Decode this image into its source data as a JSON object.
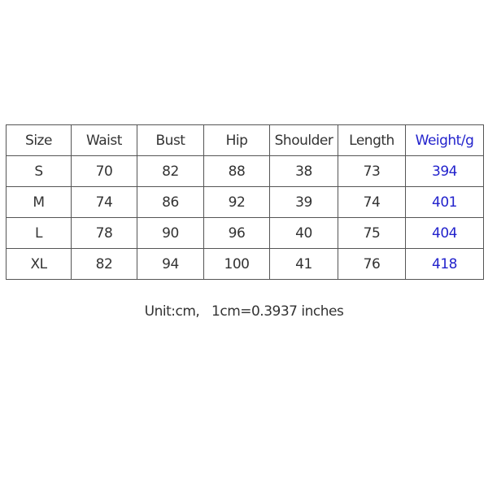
{
  "table": {
    "header": [
      "Size",
      "Waist",
      "Bust",
      "Hip",
      "Shoulder",
      "Length",
      "Weight/g"
    ],
    "rows": [
      [
        "S",
        70,
        82,
        88,
        38,
        73,
        394
      ],
      [
        "M",
        74,
        86,
        92,
        39,
        74,
        401
      ],
      [
        "L",
        78,
        90,
        96,
        40,
        75,
        404
      ],
      [
        "XL",
        82,
        94,
        100,
        41,
        76,
        418
      ]
    ]
  },
  "note": "Unit:cm,   1cm=0.3937 inches"
}
